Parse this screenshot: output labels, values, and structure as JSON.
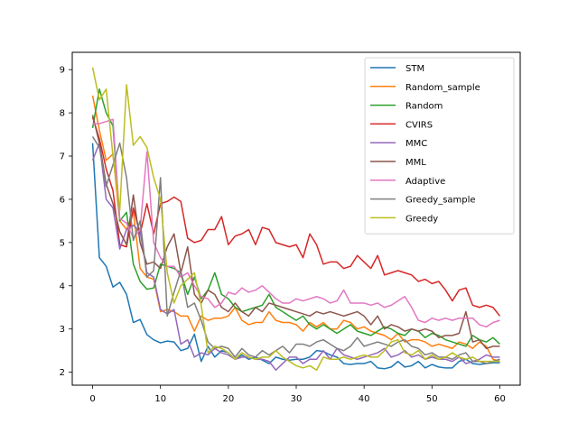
{
  "chart_data": {
    "type": "line",
    "title": "",
    "xlabel": "",
    "ylabel": "",
    "xlim": [
      -3,
      63
    ],
    "ylim": [
      1.7,
      9.4
    ],
    "x_ticks": [
      0,
      10,
      20,
      30,
      40,
      50,
      60
    ],
    "x_tick_labels": [
      "0",
      "10",
      "20",
      "30",
      "40",
      "50",
      "60"
    ],
    "y_ticks": [
      2,
      3,
      4,
      5,
      6,
      7,
      8,
      9
    ],
    "y_tick_labels": [
      "2",
      "3",
      "4",
      "5",
      "6",
      "7",
      "8",
      "9"
    ],
    "grid": false,
    "legend_position": "upper right",
    "x": [
      0,
      1,
      2,
      3,
      4,
      5,
      6,
      7,
      8,
      9,
      10,
      11,
      12,
      13,
      14,
      15,
      16,
      17,
      18,
      19,
      20,
      21,
      22,
      23,
      24,
      25,
      26,
      27,
      28,
      29,
      30,
      31,
      32,
      33,
      34,
      35,
      36,
      37,
      38,
      39,
      40,
      41,
      42,
      43,
      44,
      45,
      46,
      47,
      48,
      49,
      50,
      51,
      52,
      53,
      54,
      55,
      56,
      57,
      58,
      59,
      60
    ],
    "series": [
      {
        "name": "STM",
        "color": "#1f77b4",
        "values": [
          7.3,
          4.65,
          4.45,
          3.97,
          4.08,
          3.8,
          3.15,
          3.22,
          2.87,
          2.75,
          2.68,
          2.72,
          2.7,
          2.5,
          2.55,
          2.88,
          2.25,
          2.6,
          2.35,
          2.5,
          2.45,
          2.3,
          2.4,
          2.3,
          2.35,
          2.28,
          2.2,
          2.35,
          2.3,
          2.28,
          2.3,
          2.3,
          2.35,
          2.5,
          2.48,
          2.4,
          2.35,
          2.2,
          2.18,
          2.2,
          2.2,
          2.25,
          2.1,
          2.08,
          2.12,
          2.25,
          2.12,
          2.15,
          2.25,
          2.1,
          2.18,
          2.12,
          2.1,
          2.1,
          2.25,
          2.3,
          2.2,
          2.18,
          2.2,
          2.22,
          2.22
        ]
      },
      {
        "name": "Random_sample",
        "color": "#ff7f0e",
        "values": [
          8.4,
          7.6,
          6.9,
          7.05,
          5.5,
          5.3,
          5.7,
          4.4,
          4.2,
          4.15,
          3.4,
          3.45,
          3.4,
          3.3,
          3.3,
          2.95,
          3.3,
          3.2,
          3.25,
          3.25,
          3.3,
          3.5,
          3.2,
          3.1,
          3.15,
          3.15,
          3.4,
          3.2,
          3.15,
          3.15,
          3.1,
          2.95,
          3.15,
          3.05,
          3.15,
          3.0,
          3.0,
          3.2,
          3.15,
          3.0,
          3.05,
          2.95,
          2.9,
          2.85,
          2.75,
          2.9,
          2.7,
          2.75,
          2.75,
          2.7,
          2.6,
          2.65,
          2.6,
          2.55,
          2.7,
          2.65,
          2.55,
          2.7,
          2.6,
          2.3,
          2.25
        ]
      },
      {
        "name": "Random",
        "color": "#2ca02c",
        "values": [
          7.65,
          8.55,
          8.0,
          7.7,
          5.5,
          5.7,
          4.5,
          4.1,
          3.92,
          3.95,
          4.5,
          4.45,
          4.4,
          4.3,
          3.8,
          4.2,
          3.7,
          3.9,
          4.3,
          3.8,
          3.7,
          3.5,
          3.4,
          3.45,
          3.5,
          3.55,
          3.8,
          3.5,
          3.4,
          3.3,
          3.2,
          3.3,
          3.1,
          3.0,
          3.1,
          3.0,
          2.9,
          3.0,
          3.1,
          2.95,
          2.9,
          2.85,
          2.95,
          3.05,
          3.0,
          2.9,
          2.85,
          3.0,
          2.95,
          2.8,
          2.9,
          2.85,
          2.75,
          2.7,
          2.65,
          2.6,
          2.85,
          2.75,
          2.7,
          2.8,
          2.65
        ]
      },
      {
        "name": "CVIRS",
        "color": "#d62728",
        "values": [
          7.9,
          7.4,
          6.7,
          6.2,
          4.95,
          4.9,
          5.8,
          5.2,
          5.9,
          5.2,
          5.9,
          5.95,
          6.05,
          5.95,
          5.1,
          5.0,
          5.05,
          5.3,
          5.3,
          5.6,
          4.95,
          5.15,
          5.2,
          5.3,
          4.95,
          5.35,
          5.3,
          5.0,
          4.95,
          4.9,
          4.95,
          4.65,
          5.2,
          4.95,
          4.5,
          4.55,
          4.55,
          4.4,
          4.45,
          4.7,
          4.55,
          4.4,
          4.7,
          4.25,
          4.3,
          4.35,
          4.3,
          4.25,
          4.1,
          4.15,
          4.05,
          4.1,
          3.9,
          3.65,
          3.9,
          3.95,
          3.55,
          3.5,
          3.55,
          3.5,
          3.3
        ]
      },
      {
        "name": "MMC",
        "color": "#9467bd",
        "values": [
          6.9,
          7.3,
          6.0,
          5.8,
          4.85,
          5.3,
          5.4,
          5.25,
          4.3,
          4.2,
          3.45,
          3.35,
          3.45,
          2.65,
          2.75,
          2.35,
          2.45,
          2.4,
          2.55,
          2.45,
          2.4,
          2.3,
          2.35,
          2.35,
          2.3,
          2.3,
          2.25,
          2.05,
          2.2,
          2.35,
          2.35,
          2.2,
          2.3,
          2.3,
          2.5,
          2.3,
          2.55,
          2.4,
          2.35,
          2.3,
          2.35,
          2.4,
          2.45,
          2.55,
          2.35,
          2.4,
          2.5,
          2.35,
          2.4,
          2.3,
          2.35,
          2.3,
          2.3,
          2.25,
          2.35,
          2.2,
          2.25,
          2.3,
          2.4,
          2.35,
          2.35
        ]
      },
      {
        "name": "MML",
        "color": "#8c564b",
        "values": [
          7.95,
          7.3,
          6.35,
          5.9,
          5.25,
          4.95,
          6.1,
          5.0,
          4.5,
          4.55,
          4.4,
          4.9,
          5.2,
          4.3,
          4.9,
          3.8,
          3.6,
          3.9,
          3.8,
          3.5,
          3.4,
          3.6,
          3.4,
          3.3,
          3.5,
          3.4,
          3.6,
          3.55,
          3.5,
          3.45,
          3.4,
          3.35,
          3.3,
          3.4,
          3.35,
          3.4,
          3.35,
          3.3,
          3.35,
          3.4,
          3.3,
          3.1,
          3.3,
          3.0,
          3.1,
          3.05,
          2.95,
          3.0,
          2.95,
          3.0,
          2.95,
          2.8,
          2.85,
          2.85,
          2.9,
          3.4,
          2.7,
          2.75,
          2.55,
          2.6,
          2.6
        ]
      },
      {
        "name": "Adaptive",
        "color": "#e377c2",
        "values": [
          7.75,
          7.75,
          7.8,
          7.85,
          5.55,
          5.45,
          5.1,
          5.3,
          7.1,
          5.0,
          4.65,
          4.45,
          4.45,
          4.2,
          4.3,
          4.0,
          3.75,
          3.7,
          3.5,
          3.6,
          3.85,
          3.8,
          3.95,
          3.85,
          3.9,
          4.0,
          3.85,
          3.7,
          3.6,
          3.6,
          3.7,
          3.65,
          3.7,
          3.75,
          3.7,
          3.6,
          3.65,
          3.9,
          3.6,
          3.6,
          3.6,
          3.55,
          3.6,
          3.5,
          3.55,
          3.65,
          3.75,
          3.5,
          3.2,
          3.15,
          3.25,
          3.2,
          3.25,
          3.2,
          3.25,
          3.25,
          3.25,
          3.1,
          3.05,
          3.15,
          3.2
        ]
      },
      {
        "name": "Greedy_sample",
        "color": "#7f7f7f",
        "values": [
          7.45,
          7.2,
          6.3,
          6.8,
          7.3,
          6.5,
          5.05,
          5.5,
          4.2,
          4.35,
          6.5,
          3.3,
          3.85,
          4.35,
          3.5,
          3.6,
          3.2,
          2.7,
          2.55,
          2.6,
          2.55,
          2.35,
          2.55,
          2.4,
          2.35,
          2.5,
          2.4,
          2.5,
          2.6,
          2.45,
          2.65,
          2.65,
          2.6,
          2.7,
          2.75,
          2.65,
          2.55,
          2.5,
          2.6,
          2.8,
          2.6,
          2.65,
          2.7,
          2.65,
          2.6,
          2.7,
          2.75,
          2.6,
          2.55,
          2.4,
          2.45,
          2.35,
          2.35,
          2.3,
          2.4,
          2.45,
          2.25,
          2.25,
          2.2,
          2.25,
          2.3
        ]
      },
      {
        "name": "Greedy",
        "color": "#bcbd22",
        "values": [
          9.05,
          8.3,
          8.55,
          7.0,
          5.75,
          8.65,
          7.25,
          7.45,
          7.2,
          6.5,
          6.0,
          4.3,
          3.6,
          4.0,
          4.15,
          4.3,
          3.55,
          2.45,
          2.6,
          2.55,
          2.45,
          2.3,
          2.45,
          2.35,
          2.3,
          2.35,
          2.35,
          2.5,
          2.35,
          2.25,
          2.15,
          2.1,
          2.15,
          2.05,
          2.35,
          2.3,
          2.3,
          2.35,
          2.3,
          2.35,
          2.4,
          2.35,
          2.35,
          2.5,
          2.7,
          2.75,
          2.45,
          2.4,
          2.5,
          2.3,
          2.4,
          2.3,
          2.35,
          2.45,
          2.35,
          2.3,
          2.35,
          2.25,
          2.25,
          2.25,
          2.25
        ]
      }
    ]
  }
}
